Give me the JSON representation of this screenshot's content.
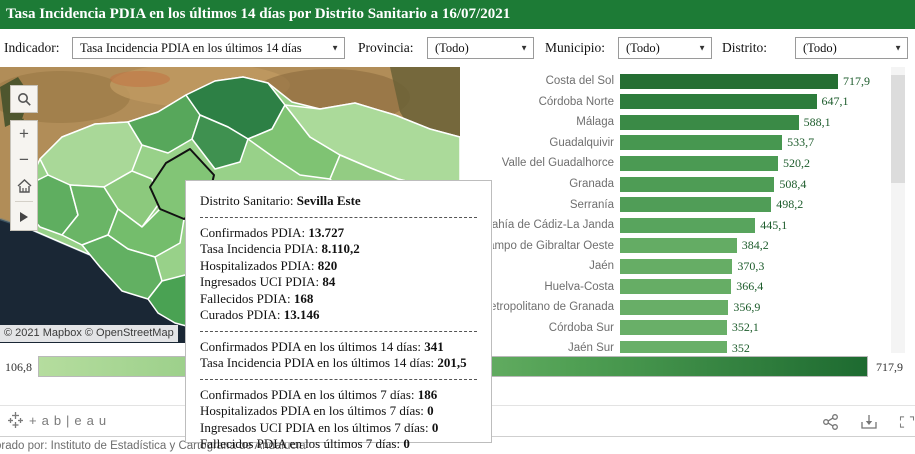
{
  "header": {
    "title": "Tasa Incidencia PDIA en los últimos 14 días por Distrito Sanitario a 16/07/2021",
    "bg_color": "#1d7b36"
  },
  "filters": [
    {
      "label": "Indicador:",
      "value": "Tasa Incidencia PDIA en los últimos 14 días"
    },
    {
      "label": "Provincia:",
      "value": "(Todo)"
    },
    {
      "label": "Municipio:",
      "value": "(Todo)"
    },
    {
      "label": "Distrito:",
      "value": "(Todo)"
    }
  ],
  "map": {
    "attribution": "© 2021 Mapbox © OpenStreetMap",
    "controls": [
      "search-icon",
      "zoom-in-icon",
      "zoom-out-icon",
      "home-icon",
      "pan-arrow-icon"
    ],
    "selected_district": "Sevilla Este"
  },
  "tooltip": {
    "title_label": "Distrito Sanitario:",
    "title_value": "Sevilla Este",
    "sections": [
      [
        [
          "Confirmados PDIA:",
          "13.727"
        ],
        [
          "Tasa Incidencia PDIA:",
          "8.110,2"
        ],
        [
          "Hospitalizados PDIA:",
          "820"
        ],
        [
          "Ingresados UCI PDIA:",
          "84"
        ],
        [
          "Fallecidos PDIA:",
          "168"
        ],
        [
          "Curados PDIA:",
          "13.146"
        ]
      ],
      [
        [
          "Confirmados PDIA en los últimos 14 días:",
          "341"
        ],
        [
          "Tasa Incidencia PDIA en los últimos 14 días:",
          "201,5"
        ]
      ],
      [
        [
          "Confirmados PDIA en los últimos 7 días:",
          "186"
        ],
        [
          "Hospitalizados PDIA en los últimos 7 días:",
          "0"
        ],
        [
          "Ingresados UCI PDIA en los últimos 7 días:",
          "0"
        ],
        [
          "Fallecidos PDIA en los últimos 7 días:",
          "0"
        ]
      ]
    ]
  },
  "chart_data": {
    "type": "bar",
    "orientation": "horizontal",
    "sort": "descending",
    "categories": [
      "Costa del Sol",
      "Córdoba Norte",
      "Málaga",
      "Guadalquivir",
      "Valle del Guadalhorce",
      "Granada",
      "Serranía",
      "Bahía de Cádiz-La Janda",
      "Campo de Gibraltar Oeste",
      "Jaén",
      "Huelva-Costa",
      "Metropolitano de Granada",
      "Córdoba Sur",
      "Jaén Sur"
    ],
    "values": [
      717.9,
      647.1,
      588.1,
      533.7,
      520.2,
      508.4,
      498.2,
      445.1,
      384.2,
      370.3,
      366.4,
      356.9,
      352.1,
      352
    ],
    "value_labels": [
      "717,9",
      "647,1",
      "588,1",
      "533,7",
      "520,2",
      "508,4",
      "498,2",
      "445,1",
      "384,2",
      "370,3",
      "366,4",
      "356,9",
      "352,1",
      "352"
    ],
    "bar_colors": [
      "#256e33",
      "#2d7c3c",
      "#3a8a46",
      "#479750",
      "#4b9a53",
      "#4e9c55",
      "#509d57",
      "#58a45d",
      "#64ac64",
      "#66ad65",
      "#66ad65",
      "#68ae67",
      "#69af68",
      "#69af68"
    ],
    "color_scale": {
      "min": 106.8,
      "max": 717.9
    },
    "title": "",
    "xlabel": "",
    "ylabel": ""
  },
  "legend": {
    "min": "106,8",
    "max": "717,9",
    "gradient": [
      "#b5dd9e",
      "#8cc77e",
      "#4f9f53",
      "#1d6a30"
    ]
  },
  "tableau": {
    "logo_text": "+ab|eau"
  },
  "footer": {
    "credit": "orado por: Instituto de Estadística y Cartografía de Andalucía"
  }
}
